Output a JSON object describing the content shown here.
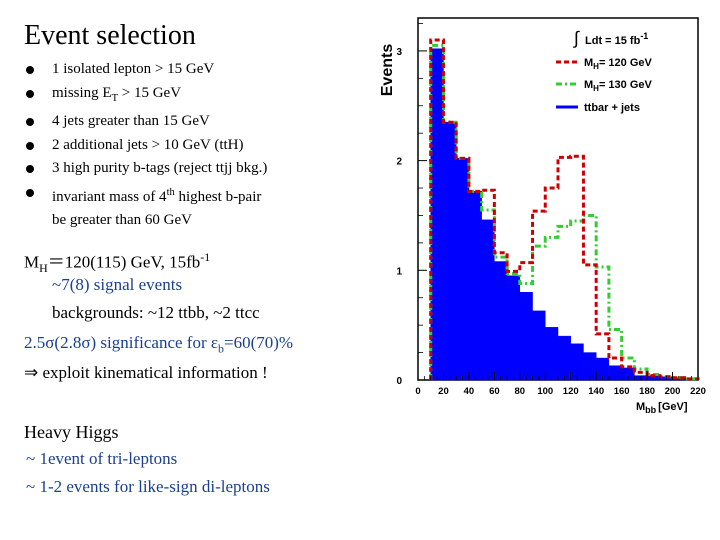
{
  "slide": {
    "title": "Event selection",
    "bullets": [
      {
        "pre": "1 isolated lepton > 15 GeV"
      },
      {
        "pre": "missing E",
        "sub": "T",
        "post": " > 15 GeV"
      },
      {
        "pre": "4 jets greater than 15 GeV"
      },
      {
        "pre": "2 additional jets > 10 GeV (ttH)"
      },
      {
        "pre": "3 high purity b-tags (reject ttjj bkg.)"
      },
      {
        "pre": "invariant mass of 4",
        "sup": "th",
        "post": " highest b-pair"
      }
    ],
    "bullet_cont": "be greater than 60 GeV",
    "mh_line": {
      "pre": "M",
      "sub": "H",
      "mid": "＝120(115) GeV, 15fb",
      "sup": "-1"
    },
    "signal_line": "~7(8) signal events",
    "bkg_line": "backgrounds: ~12 ttbb, ~2 ttcc",
    "signif_line": {
      "a": "2.5",
      "b": "σ",
      "c": "(2.8",
      "d": "σ",
      "e": ") significance for ",
      "f": "ε",
      "g": "b",
      "h": "=60(70)%"
    },
    "exploit_line": {
      "arrow": "⇒",
      "text": " exploit kinematical information !"
    },
    "heavy_title": "Heavy Higgs",
    "tri_line": "~ 1event of tri-leptons",
    "like_line": "~ 1-2 events for like-sign di-leptons"
  },
  "chart_data": {
    "type": "bar",
    "ylabel": "Events",
    "xlabel": "M",
    "xlabel_sub": "bb",
    "xlabel_unit": "[GeV]",
    "xlim": [
      0,
      220
    ],
    "ylim": [
      0,
      3.3
    ],
    "xticks": [
      "0",
      "20",
      "40",
      "60",
      "80",
      "100",
      "120",
      "140",
      "160",
      "180",
      "200",
      "220"
    ],
    "yticks": [
      "0",
      "1",
      "2",
      "3"
    ],
    "bin_edges": [
      10,
      20,
      30,
      40,
      50,
      60,
      70,
      80,
      90,
      100,
      110,
      120,
      130,
      140,
      150,
      160,
      170,
      180,
      190,
      200,
      210,
      220
    ],
    "lumi": {
      "symbol": "∫",
      "text": "Ldt = 15 fb",
      "sup": "-1"
    },
    "colors": {
      "ttbar": "#0000ff",
      "mh120": "#cc0000",
      "mh130": "#33cc33",
      "mh120_label": "#cc0000"
    },
    "series": [
      {
        "name": "ttbar + jets",
        "style": "filled",
        "values": [
          3.02,
          2.35,
          2.02,
          1.72,
          1.46,
          1.08,
          0.95,
          0.8,
          0.63,
          0.48,
          0.4,
          0.33,
          0.25,
          0.2,
          0.13,
          0.11,
          0.04,
          0.04,
          0.03,
          0.02,
          0.01
        ]
      },
      {
        "name": "Mₕ= 120 GeV",
        "legend_pre": "M",
        "legend_sub": "H",
        "legend_post": "= 120 GeV",
        "style": "dashed",
        "values": [
          3.1,
          2.35,
          2.02,
          1.72,
          1.73,
          1.16,
          0.99,
          1.07,
          1.54,
          1.75,
          2.03,
          2.04,
          1.05,
          0.42,
          0.2,
          0.12,
          0.07,
          0.04,
          0.03,
          0.02,
          0.01
        ]
      },
      {
        "name": "Mₕ= 130 GeV",
        "legend_pre": "M",
        "legend_sub": "H",
        "legend_post": "= 130 GeV",
        "style": "dotdash",
        "values": [
          3.05,
          2.35,
          2.02,
          1.72,
          1.55,
          1.12,
          0.97,
          0.88,
          1.22,
          1.3,
          1.4,
          1.45,
          1.5,
          1.03,
          0.46,
          0.2,
          0.1,
          0.05,
          0.03,
          0.02,
          0.01
        ]
      }
    ]
  }
}
